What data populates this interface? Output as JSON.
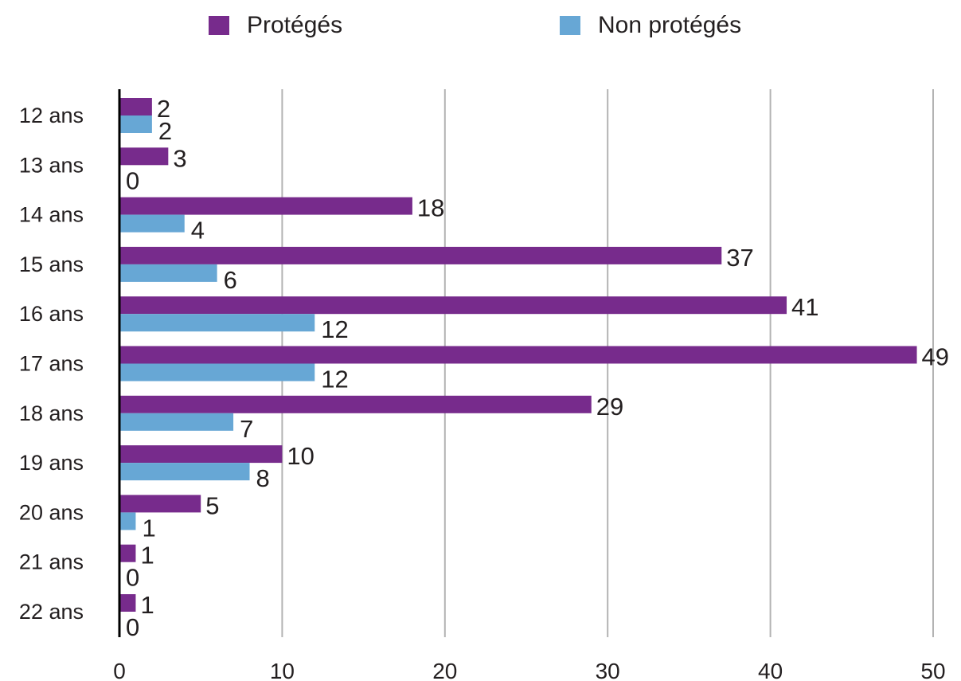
{
  "chart_data": {
    "type": "bar",
    "orientation": "horizontal",
    "categories": [
      "12 ans",
      "13 ans",
      "14 ans",
      "15 ans",
      "16 ans",
      "17 ans",
      "18 ans",
      "19 ans",
      "20 ans",
      "21 ans",
      "22 ans"
    ],
    "series": [
      {
        "name": "Protégés",
        "color": "#772b8c",
        "values": [
          2,
          3,
          18,
          37,
          41,
          49,
          29,
          10,
          5,
          1,
          1
        ]
      },
      {
        "name": "Non protégés",
        "color": "#67a7d5",
        "values": [
          2,
          0,
          4,
          6,
          12,
          12,
          7,
          8,
          1,
          0,
          0
        ]
      }
    ],
    "xlim": [
      0,
      50
    ],
    "xticks": [
      0,
      10,
      20,
      30,
      40,
      50
    ],
    "grid": true,
    "legend_position": "top",
    "data_labels": true
  }
}
